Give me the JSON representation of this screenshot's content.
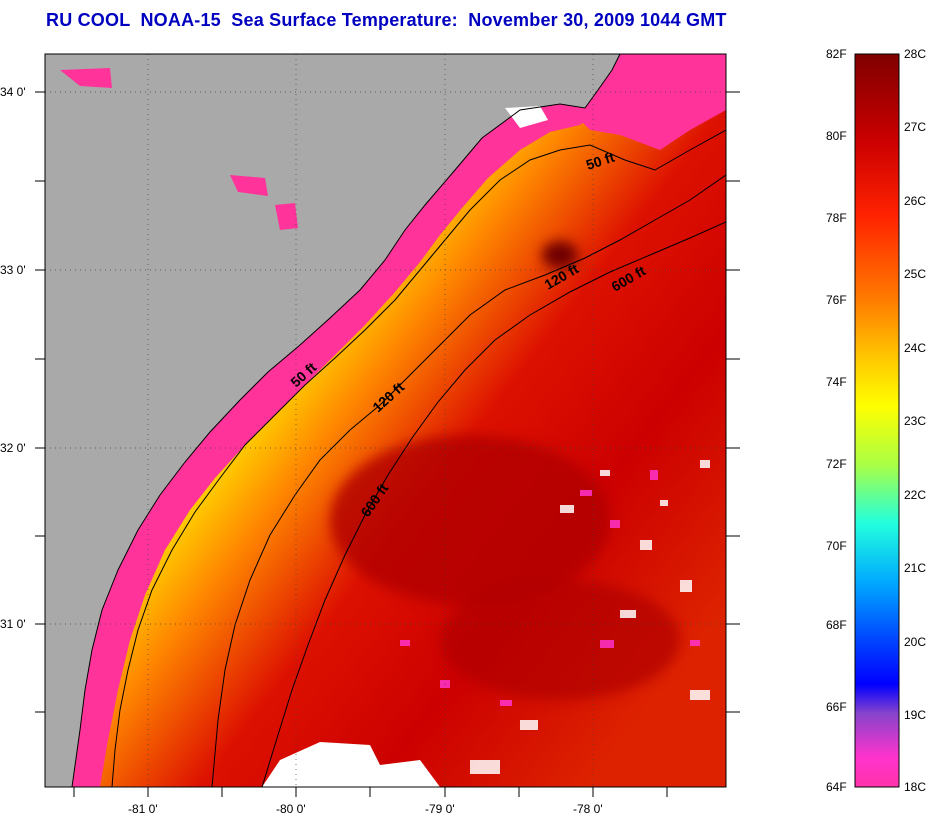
{
  "title": "RU COOL  NOAA-15  Sea Surface Temperature:  November 30, 2009 1044 GMT",
  "map": {
    "lat_labels": [
      "34 0'",
      "33 0'",
      "32 0'",
      "31 0'"
    ],
    "lon_labels": [
      "-81 0'",
      "-80 0'",
      "-79 0'",
      "-78 0'"
    ],
    "isobath_labels": {
      "ft50_north": "50 ft",
      "ft50_south": "50 ft",
      "ft120_north": "120 ft",
      "ft120_south": "120 ft",
      "ft600_north": "600 ft",
      "ft600_south": "600 ft"
    },
    "colors": {
      "land": "#a9a9a9",
      "cloud": "#ffffff",
      "coast_cold": "#ff3399",
      "deep_warm": "#cc0000"
    }
  },
  "colorbar": {
    "left_labels": [
      "82F",
      "80F",
      "78F",
      "76F",
      "74F",
      "72F",
      "70F",
      "68F",
      "66F",
      "64F"
    ],
    "right_labels": [
      "28C",
      "27C",
      "26C",
      "25C",
      "24C",
      "23C",
      "22C",
      "21C",
      "20C",
      "19C",
      "18C"
    ],
    "gradient_stops": [
      "#800000",
      "#cc0000",
      "#ff2200",
      "#ff7700",
      "#ffcc00",
      "#ffff00",
      "#aaff44",
      "#22ffdd",
      "#00aaff",
      "#0044ff",
      "#0000ff",
      "#8844cc",
      "#ff33cc"
    ]
  }
}
